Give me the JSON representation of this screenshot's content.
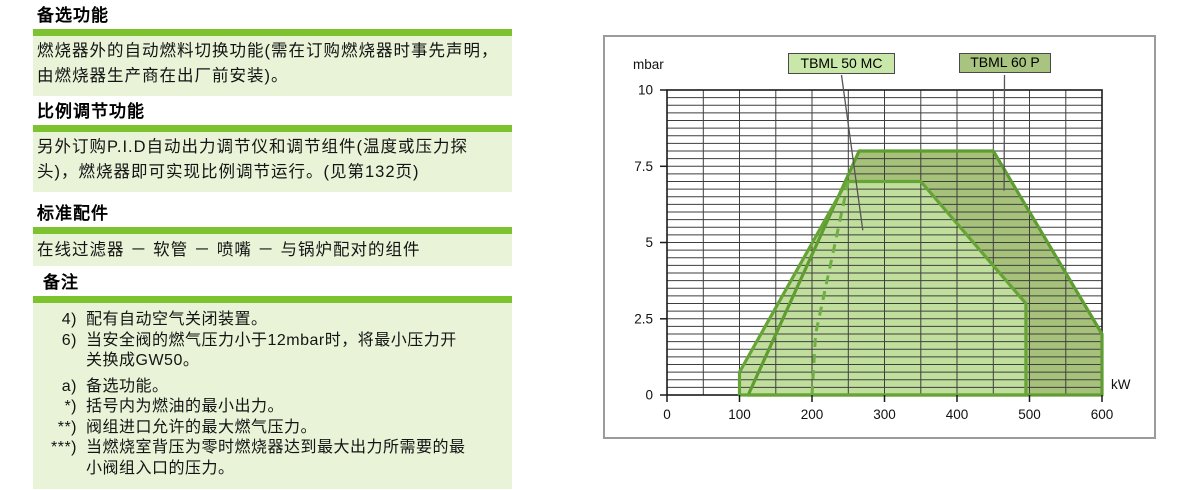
{
  "sections": [
    {
      "heading": "备选功能",
      "body": "燃烧器外的自动燃料切换功能(需在订购燃烧器时事先声明，由燃烧器生产商在出厂前安装)。"
    },
    {
      "heading": "比例调节功能",
      "body": "另外订购P.I.D自动出力调节仪和调节组件(温度或压力探头)，燃烧器即可实现比例调节运行。(见第132页)"
    },
    {
      "heading": "标准配件",
      "body": "在线过滤器 － 软管 － 喷嘴 － 与锅炉配对的组件"
    },
    {
      "heading": "备注",
      "notes": [
        {
          "marker": "4)",
          "text": "配有自动空气关闭装置。"
        },
        {
          "marker": "6)",
          "text": "当安全阀的燃气压力小于12mbar时，将最小压力开关换成GW50。"
        },
        {
          "marker": "a)",
          "text": "备选功能。"
        },
        {
          "marker": "*)",
          "text": "括号内为燃油的最小出力。"
        },
        {
          "marker": "**)",
          "text": "阀组进口允许的最大燃气压力。"
        },
        {
          "marker": "***)",
          "text": "当燃烧室背压为零时燃烧器达到最大出力所需要的最小阀组入口的压力。"
        }
      ]
    }
  ],
  "colors": {
    "section_bar": "#7dc22f",
    "section_block_bg": "#e8f3d7",
    "chart_frame_border": "#9b9b9b"
  },
  "chart_data": {
    "type": "area",
    "title": "",
    "x_unit": "kW",
    "y_unit": "mbar",
    "xlim": [
      0,
      600
    ],
    "ylim": [
      0,
      10
    ],
    "x_ticks": [
      0,
      100,
      200,
      300,
      400,
      500,
      600
    ],
    "y_ticks": [
      0,
      2.5,
      5,
      7.5,
      10
    ],
    "x_minor_step": 50,
    "y_minor_step": 0.25,
    "grid_on": true,
    "grid_color": "#3e3e3e",
    "axis_color": "#1a1a1a",
    "series": [
      {
        "name": "TBML 60 P",
        "fill": "#a6c27a",
        "stroke": "#5f9c31",
        "points": [
          [
            112,
            0
          ],
          [
            265,
            8
          ],
          [
            450,
            8
          ],
          [
            600,
            2
          ],
          [
            600,
            0
          ]
        ]
      },
      {
        "name": "TBML 50 MC",
        "fill": "#c1df9c",
        "stroke": "#67a437",
        "points": [
          [
            100,
            0
          ],
          [
            100,
            0.75
          ],
          [
            248,
            7
          ],
          [
            350,
            7
          ],
          [
            495,
            3
          ],
          [
            495,
            0
          ]
        ]
      }
    ],
    "dashed_boundary": {
      "name": "TBML 50 MC dashed minimum-output line",
      "color": "#70ad45",
      "points": [
        [
          200,
          0
        ],
        [
          205,
          2
        ],
        [
          250,
          7
        ]
      ]
    },
    "legend": [
      {
        "label": "TBML 50 MC",
        "box_fill": "#c9e7a8",
        "points_to": [
          270,
          5.4
        ]
      },
      {
        "label": "TBML 60 P",
        "box_fill": "#a8c480",
        "points_to": [
          465,
          6.7
        ]
      }
    ]
  }
}
